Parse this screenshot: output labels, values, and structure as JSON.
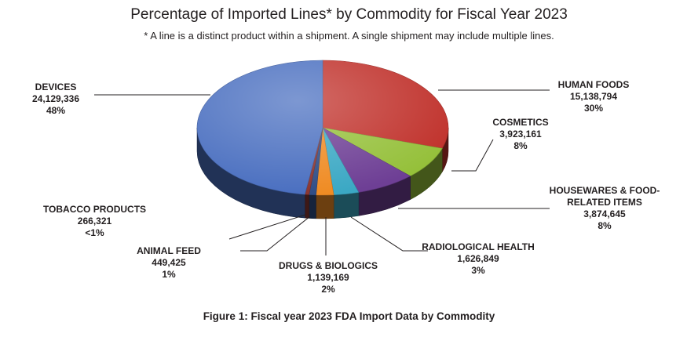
{
  "chart_data": {
    "type": "pie",
    "title": "Percentage of Imported Lines* by Commodity for Fiscal Year 2023",
    "subtitle": "* A line is a distinct product within a shipment. A single shipment may include multiple lines.",
    "caption": "Figure 1: Fiscal year 2023 FDA Import Data by Commodity",
    "slices": [
      {
        "label": "HUMAN FOODS",
        "value": 15138794,
        "value_text": "15,138,794",
        "percent_text": "30%",
        "color": "#c0312b"
      },
      {
        "label": "COSMETICS",
        "value": 3923161,
        "value_text": "3,923,161",
        "percent_text": "8%",
        "color": "#95c03a"
      },
      {
        "label": "HOUSEWARES & FOOD-RELATED ITEMS",
        "label_line1": "HOUSEWARES & FOOD-",
        "label_line2": "RELATED ITEMS",
        "value": 3874645,
        "value_text": "3,874,645",
        "percent_text": "8%",
        "color": "#6e3f95"
      },
      {
        "label": "RADIOLOGICAL HEALTH",
        "value": 1626849,
        "value_text": "1,626,849",
        "percent_text": "3%",
        "color": "#3ba8c4"
      },
      {
        "label": "DRUGS & BIOLOGICS",
        "value": 1139169,
        "value_text": "1,139,169",
        "percent_text": "2%",
        "color": "#ef8b23"
      },
      {
        "label": "ANIMAL FEED",
        "value": 449425,
        "value_text": "449,425",
        "percent_text": "1%",
        "color": "#2f4d86"
      },
      {
        "label": "TOBACCO PRODUCTS",
        "value": 266321,
        "value_text": "266,321",
        "percent_text": "<1%",
        "color": "#8a3530"
      },
      {
        "label": "DEVICES",
        "value": 24129336,
        "value_text": "24,129,336",
        "percent_text": "48%",
        "color": "#4a6fc0"
      }
    ]
  }
}
